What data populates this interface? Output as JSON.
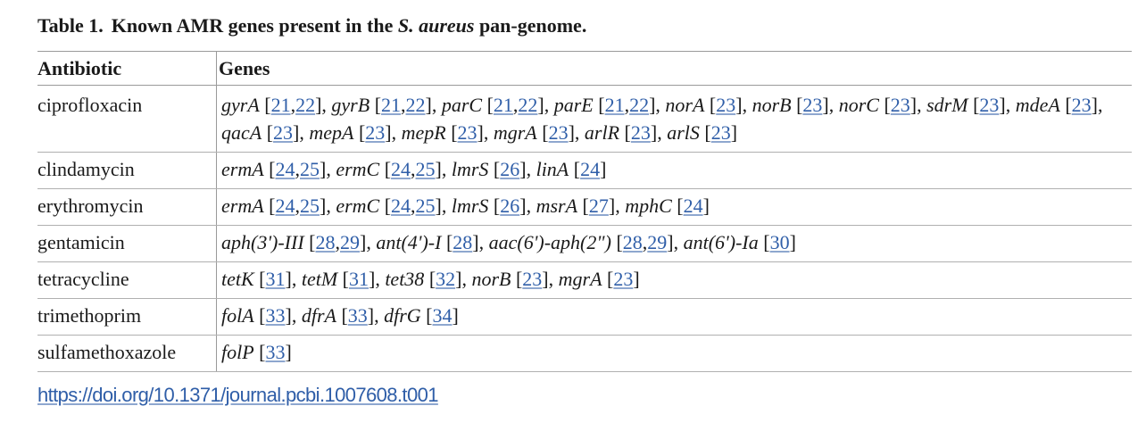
{
  "caption": {
    "label": "Table 1.",
    "text_before": "Known AMR genes present in the ",
    "species": "S. aureus",
    "text_after": " pan-genome."
  },
  "table": {
    "headers": [
      "Antibiotic",
      "Genes"
    ],
    "rows": [
      {
        "antibiotic": "ciprofloxacin",
        "genes": [
          {
            "name": "gyrA",
            "refs": [
              "21",
              "22"
            ]
          },
          {
            "name": "gyrB",
            "refs": [
              "21",
              "22"
            ]
          },
          {
            "name": "parC",
            "refs": [
              "21",
              "22"
            ]
          },
          {
            "name": "parE",
            "refs": [
              "21",
              "22"
            ]
          },
          {
            "name": "norA",
            "refs": [
              "23"
            ]
          },
          {
            "name": "norB",
            "refs": [
              "23"
            ]
          },
          {
            "name": "norC",
            "refs": [
              "23"
            ]
          },
          {
            "name": "sdrM",
            "refs": [
              "23"
            ]
          },
          {
            "name": "mdeA",
            "refs": [
              "23"
            ]
          },
          {
            "name": "qacA",
            "refs": [
              "23"
            ]
          },
          {
            "name": "mepA",
            "refs": [
              "23"
            ]
          },
          {
            "name": "mepR",
            "refs": [
              "23"
            ]
          },
          {
            "name": "mgrA",
            "refs": [
              "23"
            ]
          },
          {
            "name": "arlR",
            "refs": [
              "23"
            ]
          },
          {
            "name": "arlS",
            "refs": [
              "23"
            ]
          }
        ]
      },
      {
        "antibiotic": "clindamycin",
        "genes": [
          {
            "name": "ermA",
            "refs": [
              "24",
              "25"
            ]
          },
          {
            "name": "ermC",
            "refs": [
              "24",
              "25"
            ]
          },
          {
            "name": "lmrS",
            "refs": [
              "26"
            ]
          },
          {
            "name": "linA",
            "refs": [
              "24"
            ]
          }
        ]
      },
      {
        "antibiotic": "erythromycin",
        "genes": [
          {
            "name": "ermA",
            "refs": [
              "24",
              "25"
            ]
          },
          {
            "name": "ermC",
            "refs": [
              "24",
              "25"
            ]
          },
          {
            "name": "lmrS",
            "refs": [
              "26"
            ]
          },
          {
            "name": "msrA",
            "refs": [
              "27"
            ]
          },
          {
            "name": "mphC",
            "refs": [
              "24"
            ]
          }
        ]
      },
      {
        "antibiotic": "gentamicin",
        "genes": [
          {
            "name": "aph(3')-III",
            "refs": [
              "28",
              "29"
            ]
          },
          {
            "name": "ant(4')-I",
            "refs": [
              "28"
            ]
          },
          {
            "name": "aac(6')-aph(2\")",
            "refs": [
              "28",
              "29"
            ]
          },
          {
            "name": "ant(6')-Ia",
            "refs": [
              "30"
            ]
          }
        ]
      },
      {
        "antibiotic": "tetracycline",
        "genes": [
          {
            "name": "tetK",
            "refs": [
              "31"
            ]
          },
          {
            "name": "tetM",
            "refs": [
              "31"
            ]
          },
          {
            "name": "tet38",
            "refs": [
              "32"
            ]
          },
          {
            "name": "norB",
            "refs": [
              "23"
            ]
          },
          {
            "name": "mgrA",
            "refs": [
              "23"
            ]
          }
        ]
      },
      {
        "antibiotic": "trimethoprim",
        "genes": [
          {
            "name": "folA",
            "refs": [
              "33"
            ]
          },
          {
            "name": "dfrA",
            "refs": [
              "33"
            ]
          },
          {
            "name": "dfrG",
            "refs": [
              "34"
            ]
          }
        ]
      },
      {
        "antibiotic": "sulfamethoxazole",
        "genes": [
          {
            "name": "folP",
            "refs": [
              "33"
            ]
          }
        ]
      }
    ]
  },
  "doi": "https://doi.org/10.1371/journal.pcbi.1007608.t001"
}
